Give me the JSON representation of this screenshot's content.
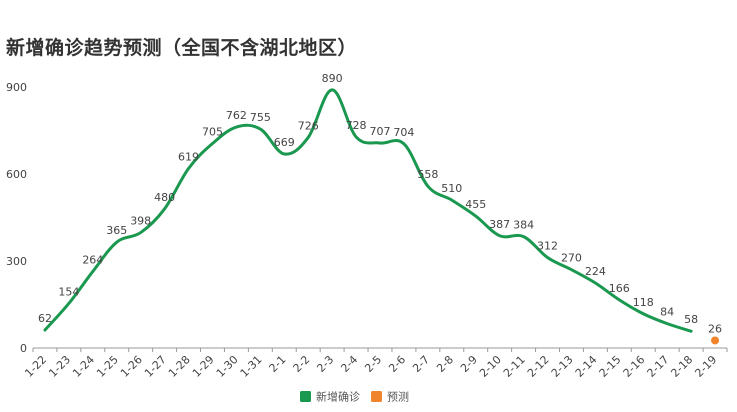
{
  "title": "新增确诊趋势预测（全国不含湖北地区）",
  "colors": {
    "actual": "#1a9850",
    "forecast": "#f0842c",
    "axis": "#999999",
    "grid": "#e6e6e6"
  },
  "chart_data": {
    "type": "line",
    "title": "新增确诊趋势预测（全国不含湖北地区）",
    "categories": [
      "1-22",
      "1-23",
      "1-24",
      "1-25",
      "1-26",
      "1-27",
      "1-28",
      "1-29",
      "1-30",
      "1-31",
      "2-1",
      "2-2",
      "2-3",
      "2-4",
      "2-5",
      "2-6",
      "2-7",
      "2-8",
      "2-9",
      "2-10",
      "2-11",
      "2-12",
      "2-13",
      "2-14",
      "2-15",
      "2-16",
      "2-17",
      "2-18",
      "2-19"
    ],
    "series": [
      {
        "name": "新增确诊",
        "type": "line",
        "values": [
          62,
          154,
          264,
          365,
          398,
          480,
          619,
          705,
          762,
          755,
          669,
          726,
          890,
          728,
          707,
          704,
          558,
          510,
          455,
          387,
          384,
          312,
          270,
          224,
          166,
          118,
          84,
          58,
          null
        ]
      },
      {
        "name": "预测",
        "type": "scatter",
        "values": [
          null,
          null,
          null,
          null,
          null,
          null,
          null,
          null,
          null,
          null,
          null,
          null,
          null,
          null,
          null,
          null,
          null,
          null,
          null,
          null,
          null,
          null,
          null,
          null,
          null,
          null,
          null,
          null,
          26
        ]
      }
    ],
    "yticks": [
      0,
      300,
      600,
      900
    ],
    "ylim": [
      0,
      900
    ],
    "grid": false,
    "legend": "bottom-center"
  }
}
